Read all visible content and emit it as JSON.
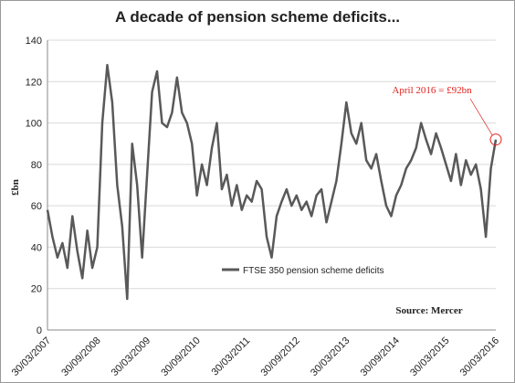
{
  "chart_data": {
    "type": "line",
    "title": "A decade of pension scheme deficits...",
    "y_label": "£bn",
    "annotation": "April 2016 = £92bn",
    "source": "Source: Mercer",
    "categories": [
      "30/03/2007",
      null,
      null,
      null,
      null,
      null,
      null,
      null,
      null,
      null,
      "30/09/2008",
      null,
      null,
      null,
      null,
      null,
      null,
      null,
      null,
      null,
      "30/03/2009",
      null,
      null,
      null,
      null,
      null,
      null,
      null,
      null,
      null,
      "30/09/2010",
      null,
      null,
      null,
      null,
      null,
      null,
      null,
      null,
      null,
      "30/03/2011",
      null,
      null,
      null,
      null,
      null,
      null,
      null,
      null,
      null,
      "30/09/2012",
      null,
      null,
      null,
      null,
      null,
      null,
      null,
      null,
      null,
      "30/03/2013",
      null,
      null,
      null,
      null,
      null,
      null,
      null,
      null,
      null,
      "30/09/2014",
      null,
      null,
      null,
      null,
      null,
      null,
      null,
      null,
      null,
      "30/03/2015",
      null,
      null,
      null,
      null,
      null,
      null,
      null,
      null,
      null,
      "30/03/2016"
    ],
    "series": [
      {
        "name": "FTSE 350 pension scheme deficits",
        "color": "#595959",
        "values": [
          58,
          45,
          35,
          42,
          30,
          55,
          38,
          25,
          48,
          30,
          40,
          100,
          128,
          110,
          70,
          50,
          15,
          90,
          70,
          35,
          75,
          115,
          125,
          100,
          98,
          105,
          122,
          105,
          100,
          90,
          65,
          80,
          70,
          88,
          100,
          68,
          75,
          60,
          70,
          58,
          65,
          62,
          72,
          68,
          45,
          35,
          55,
          62,
          68,
          60,
          65,
          58,
          62,
          55,
          65,
          68,
          52,
          62,
          72,
          90,
          110,
          95,
          90,
          100,
          82,
          78,
          85,
          72,
          60,
          55,
          65,
          70,
          78,
          82,
          88,
          100,
          92,
          85,
          95,
          88,
          80,
          72,
          85,
          70,
          82,
          75,
          80,
          68,
          45,
          78,
          92
        ]
      }
    ],
    "ylim": [
      0,
      140
    ],
    "yticks": [
      0,
      20,
      40,
      60,
      80,
      100,
      120,
      140
    ],
    "grid": true,
    "annotation_color": "#e0201b"
  }
}
